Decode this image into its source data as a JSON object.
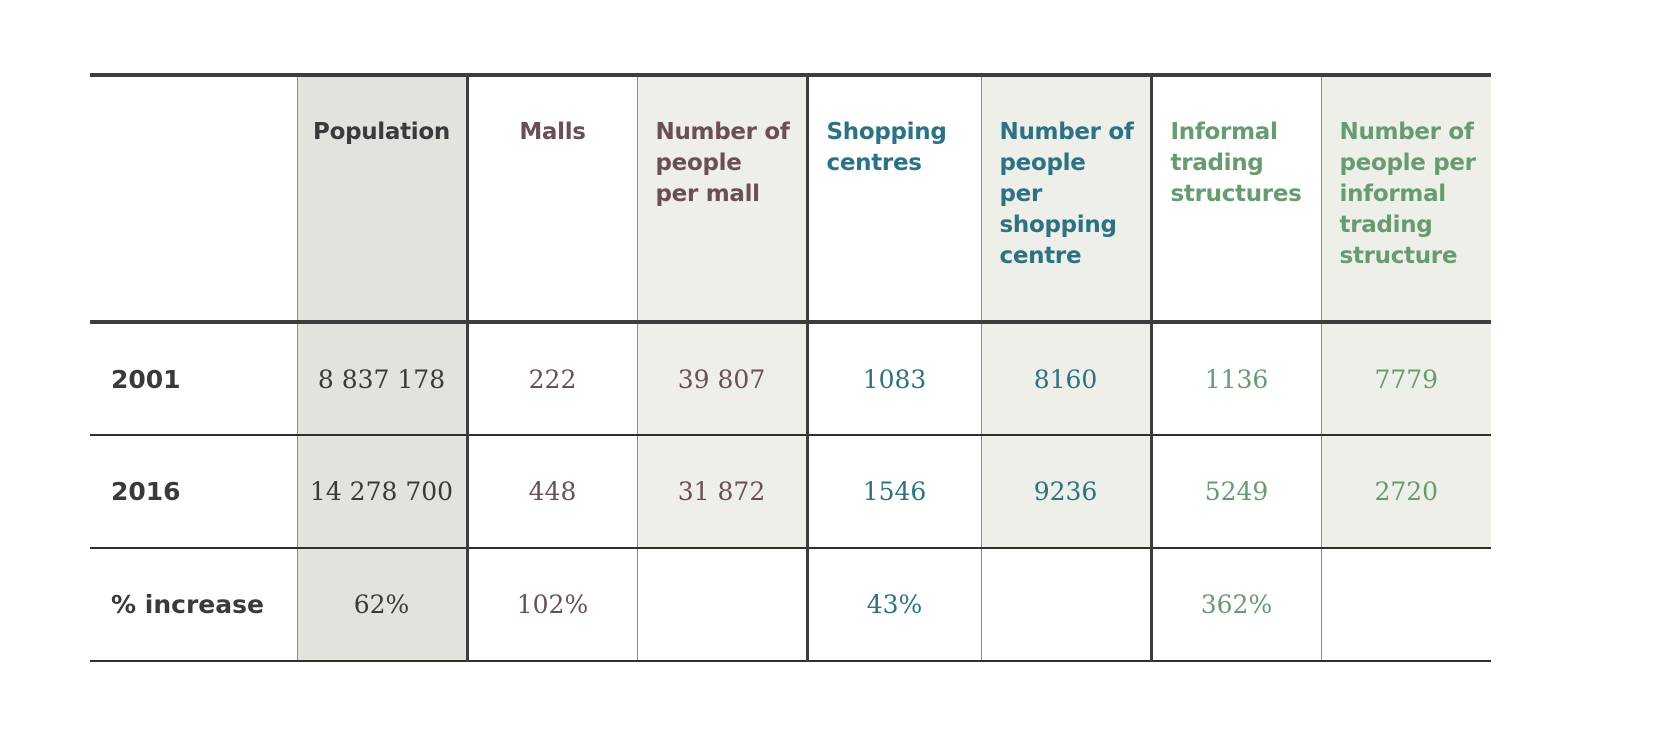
{
  "colors": {
    "population": "#3a3a3a",
    "malls": "#6b4f57",
    "shopping": "#2c7284",
    "informal": "#679c70",
    "population_shade": "#e3e2dc",
    "alt_shade": "#efefea",
    "rule": "#3d3d3d"
  },
  "chart_data": {
    "type": "table",
    "columns": [
      "",
      "Population",
      "Malls",
      "Number of people per mall",
      "Shopping centres",
      "Number of people per shopping centre",
      "Informal trading structures",
      "Number of people per informal trading structure"
    ],
    "rows": [
      {
        "label": "2001",
        "cells": [
          "8 837 178",
          "222",
          "39 807",
          "1083",
          "8160",
          "1136",
          "7779"
        ]
      },
      {
        "label": "2016",
        "cells": [
          "14 278 700",
          "448",
          "31 872",
          "1546",
          "9236",
          "5249",
          "2720"
        ]
      },
      {
        "label": "% increase",
        "cells": [
          "62%",
          "102%",
          "",
          "43%",
          "",
          "362%",
          ""
        ]
      }
    ]
  }
}
